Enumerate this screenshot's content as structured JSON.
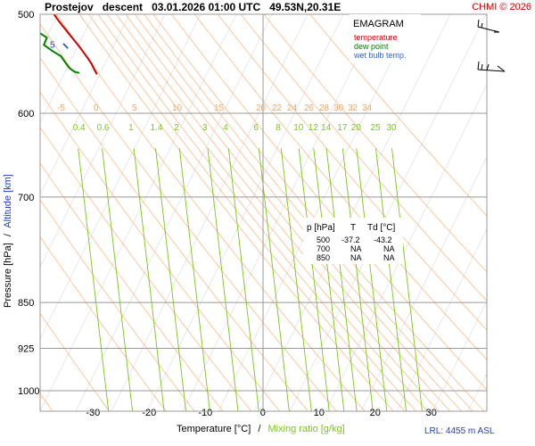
{
  "header": {
    "station": "Prostejov",
    "mode": "descent",
    "datetime": "03.01.2026 01:00 UTC",
    "coords": "49.53N,20.31E",
    "copyright": "CHMI © 2026"
  },
  "legend": {
    "title": "EMAGRAM",
    "temperature": "temperature",
    "dew_point": "dew point",
    "wet_bulb": "wet bulb temp."
  },
  "axes": {
    "ylabel_pressure": "Pressure [hPa]",
    "ylabel_sep": "/",
    "ylabel_altitude": "Altitude [km]",
    "xlabel_temperature": "Temperature [°C]",
    "xlabel_sep": "/",
    "xlabel_mixing": "Mixing ratio [g/kg]"
  },
  "lrl": "LRL: 4455 m ASL",
  "table": {
    "headers": [
      "p [hPa]",
      "T",
      "Td [°C]"
    ],
    "rows": [
      [
        "500",
        "-37.2",
        "-43.2"
      ],
      [
        "700",
        "NA",
        "NA"
      ],
      [
        "850",
        "NA",
        "NA"
      ]
    ]
  },
  "chart_data": {
    "type": "line",
    "title": "EMAGRAM",
    "xlabel": "Temperature [°C] / Mixing ratio [g/kg]",
    "ylabel": "Pressure [hPa] / Altitude [km]",
    "xlim": [
      -38,
      40
    ],
    "ylim": [
      1000,
      500
    ],
    "y_scale": "log",
    "x_ticks": [
      -30,
      -20,
      -10,
      0,
      10,
      20,
      30
    ],
    "y_ticks": [
      500,
      600,
      700,
      850,
      925,
      1000
    ],
    "altitude_labels": [
      {
        "label": "5",
        "p": 529
      }
    ],
    "dry_adiabat_labels": [
      -5,
      0,
      5,
      10,
      15,
      20,
      22,
      24,
      26,
      28,
      30,
      32,
      34
    ],
    "mixing_ratio_labels": [
      "0.4",
      "0.6",
      "1",
      "1.4",
      "2",
      "3",
      "4",
      "6",
      "8",
      "10",
      "12",
      "14",
      "17",
      "20",
      "25",
      "30"
    ],
    "series": [
      {
        "name": "temperature",
        "color": "#cc0000",
        "points": [
          {
            "t": -37.2,
            "p": 500
          },
          {
            "t": -36.4,
            "p": 506
          },
          {
            "t": -35.5,
            "p": 512
          },
          {
            "t": -34.6,
            "p": 518
          },
          {
            "t": -33.7,
            "p": 524
          },
          {
            "t": -32.8,
            "p": 530
          },
          {
            "t": -32.0,
            "p": 536
          },
          {
            "t": -31.2,
            "p": 542
          },
          {
            "t": -30.5,
            "p": 548
          },
          {
            "t": -30.0,
            "p": 554
          },
          {
            "t": -29.6,
            "p": 558
          }
        ]
      },
      {
        "name": "dew point",
        "color": "#008000",
        "points": [
          {
            "t": -43.2,
            "p": 500
          },
          {
            "t": -42.5,
            "p": 508
          },
          {
            "t": -38.5,
            "p": 522
          },
          {
            "t": -39.0,
            "p": 529
          },
          {
            "t": -37.5,
            "p": 535
          },
          {
            "t": -36.0,
            "p": 540
          },
          {
            "t": -35.0,
            "p": 548
          },
          {
            "t": -34.5,
            "p": 552
          },
          {
            "t": -34.0,
            "p": 554
          },
          {
            "t": -33.5,
            "p": 556
          },
          {
            "t": -32.8,
            "p": 557
          }
        ]
      },
      {
        "name": "wet bulb temp.",
        "color": "#3366cc",
        "points": [
          {
            "t": -35.5,
            "p": 528
          },
          {
            "t": -34.8,
            "p": 532
          }
        ]
      }
    ],
    "grid": true
  },
  "colors": {
    "temperature": "#cc0000",
    "dew_point": "#008000",
    "wet_bulb": "#3366cc",
    "dry_adiabat": "#f4a460",
    "mixing_ratio": "#7cc31e",
    "altitude_axis": "#1f3fbf",
    "copyright": "#cc0000"
  }
}
